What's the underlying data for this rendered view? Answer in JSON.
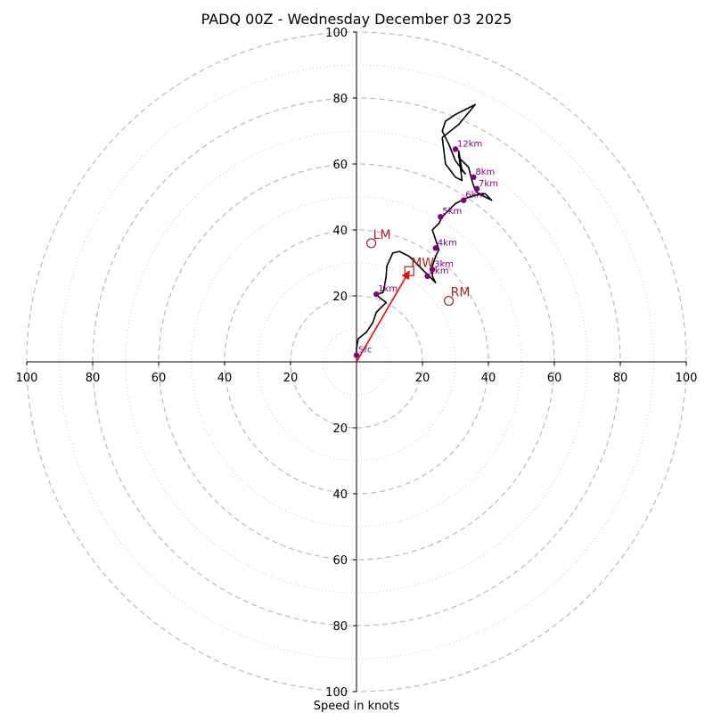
{
  "chart_data": {
    "type": "hodograph",
    "title": "PADQ 00Z - Wednesday December 03 2025",
    "xlabel": "Speed in knots",
    "max_speed": 100,
    "major_rings": [
      20,
      40,
      60,
      80,
      100
    ],
    "minor_rings": [
      10,
      30,
      50,
      70,
      90
    ],
    "tick_values": [
      20,
      40,
      60,
      80,
      100
    ],
    "tick_labels": [
      "20",
      "40",
      "60",
      "80",
      "100"
    ],
    "hodograph": {
      "color": "#000000",
      "u": [
        0,
        0,
        0.5,
        3,
        5,
        6,
        8,
        9,
        7,
        6,
        8,
        8.5,
        9,
        9.2,
        11,
        13,
        16,
        18,
        20,
        22,
        23,
        24,
        23,
        23,
        24,
        25,
        24,
        23,
        25,
        26,
        28,
        30,
        33,
        36,
        39,
        41,
        37,
        36,
        35,
        34,
        32,
        31,
        31,
        32,
        33,
        30,
        28,
        26,
        27,
        30,
        33,
        36,
        31,
        26,
        27,
        30,
        32,
        31
      ],
      "v": [
        2,
        4,
        7,
        9,
        12,
        15,
        17,
        18,
        19.5,
        20.5,
        21,
        23,
        26,
        29,
        33,
        33.5,
        32,
        30,
        28,
        26,
        25,
        24,
        26,
        29,
        32,
        34,
        37,
        40,
        42,
        44,
        46,
        48,
        49.5,
        50.5,
        51,
        49,
        51,
        52,
        55,
        59,
        61,
        62,
        64,
        58,
        57,
        61,
        66,
        70,
        73,
        75,
        76.5,
        78,
        72,
        68,
        60,
        56,
        55,
        63
      ]
    },
    "height_points": [
      {
        "label": "Sfc",
        "u": 0,
        "v": 2
      },
      {
        "label": "1km",
        "u": 6,
        "v": 20.5
      },
      {
        "label": "2km",
        "u": 21.5,
        "v": 26
      },
      {
        "label": "3km",
        "u": 23,
        "v": 28
      },
      {
        "label": "4km",
        "u": 24,
        "v": 34.5
      },
      {
        "label": "5km",
        "u": 25.5,
        "v": 44
      },
      {
        "label": "6km",
        "u": 32.5,
        "v": 49
      },
      {
        "label": "7km",
        "u": 36.5,
        "v": 52.5
      },
      {
        "label": "8km",
        "u": 35.5,
        "v": 56
      },
      {
        "label": "12km",
        "u": 30,
        "v": 64.5
      }
    ],
    "height_point_color": "#800080",
    "storm_motion": [
      {
        "label": "LM",
        "u": 4.5,
        "v": 36,
        "marker": "circle"
      },
      {
        "label": "RM",
        "u": 28,
        "v": 18.5,
        "marker": "circle"
      },
      {
        "label": "MW",
        "u": 16,
        "v": 27.5,
        "marker": "square"
      }
    ],
    "storm_motion_color": "#b22222",
    "shear_vector": {
      "from_u": 0,
      "from_v": 0,
      "to_u": 16,
      "to_v": 27.5,
      "color": "#ff0000"
    }
  }
}
